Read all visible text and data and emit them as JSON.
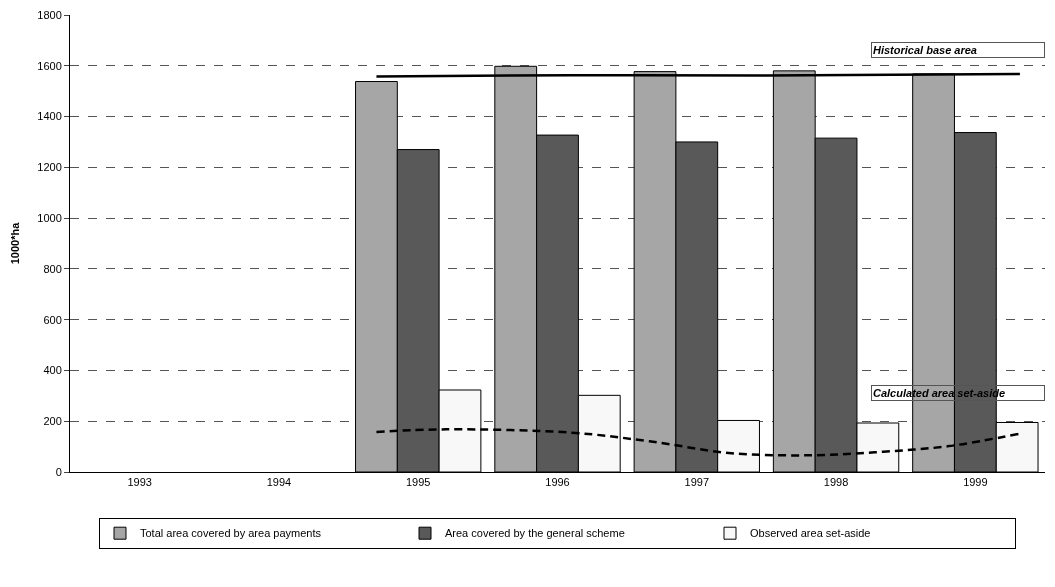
{
  "chart_data": {
    "type": "bar",
    "ylabel": "1000*ha",
    "x": [
      1995,
      1996,
      1997,
      1998,
      1999
    ],
    "xlim": [
      1992.5,
      1999.5
    ],
    "xticks": [
      1993,
      1994,
      1995,
      1996,
      1997,
      1998,
      1999
    ],
    "ylim": [
      0,
      1800
    ],
    "yticks": [
      0,
      200,
      400,
      600,
      800,
      1000,
      1200,
      1400,
      1600,
      1800
    ],
    "grid": "y",
    "legend": "bottom",
    "series": [
      {
        "name": "Total area covered by area payments",
        "color": "#a6a6a6",
        "values": [
          1538,
          1598,
          1577,
          1580,
          1568
        ]
      },
      {
        "name": "Area covered by the general scheme",
        "color": "#595959",
        "values": [
          1270,
          1327,
          1300,
          1315,
          1337
        ]
      },
      {
        "name": "Observed area set-aside",
        "color": "#f8f8f8",
        "values": [
          323,
          302,
          203,
          193,
          195
        ]
      },
      {
        "type": "line",
        "color": "#000000",
        "line_style": "solid",
        "x": [
          1994.7,
          1996.1,
          1997.5,
          1999.32
        ],
        "values": [
          1558,
          1563,
          1562,
          1568
        ]
      },
      {
        "type": "line",
        "color": "#000000",
        "line_style": "dashed",
        "x": [
          1994.7,
          1995.2,
          1996.1,
          1996.66,
          1997.25,
          1997.84,
          1998.34,
          1998.81,
          1999.32
        ],
        "values": [
          158,
          168,
          155,
          121,
          74,
          66,
          80,
          102,
          151
        ]
      }
    ],
    "annotations": [
      "Historical base area",
      "Calculated area set-aside"
    ]
  }
}
